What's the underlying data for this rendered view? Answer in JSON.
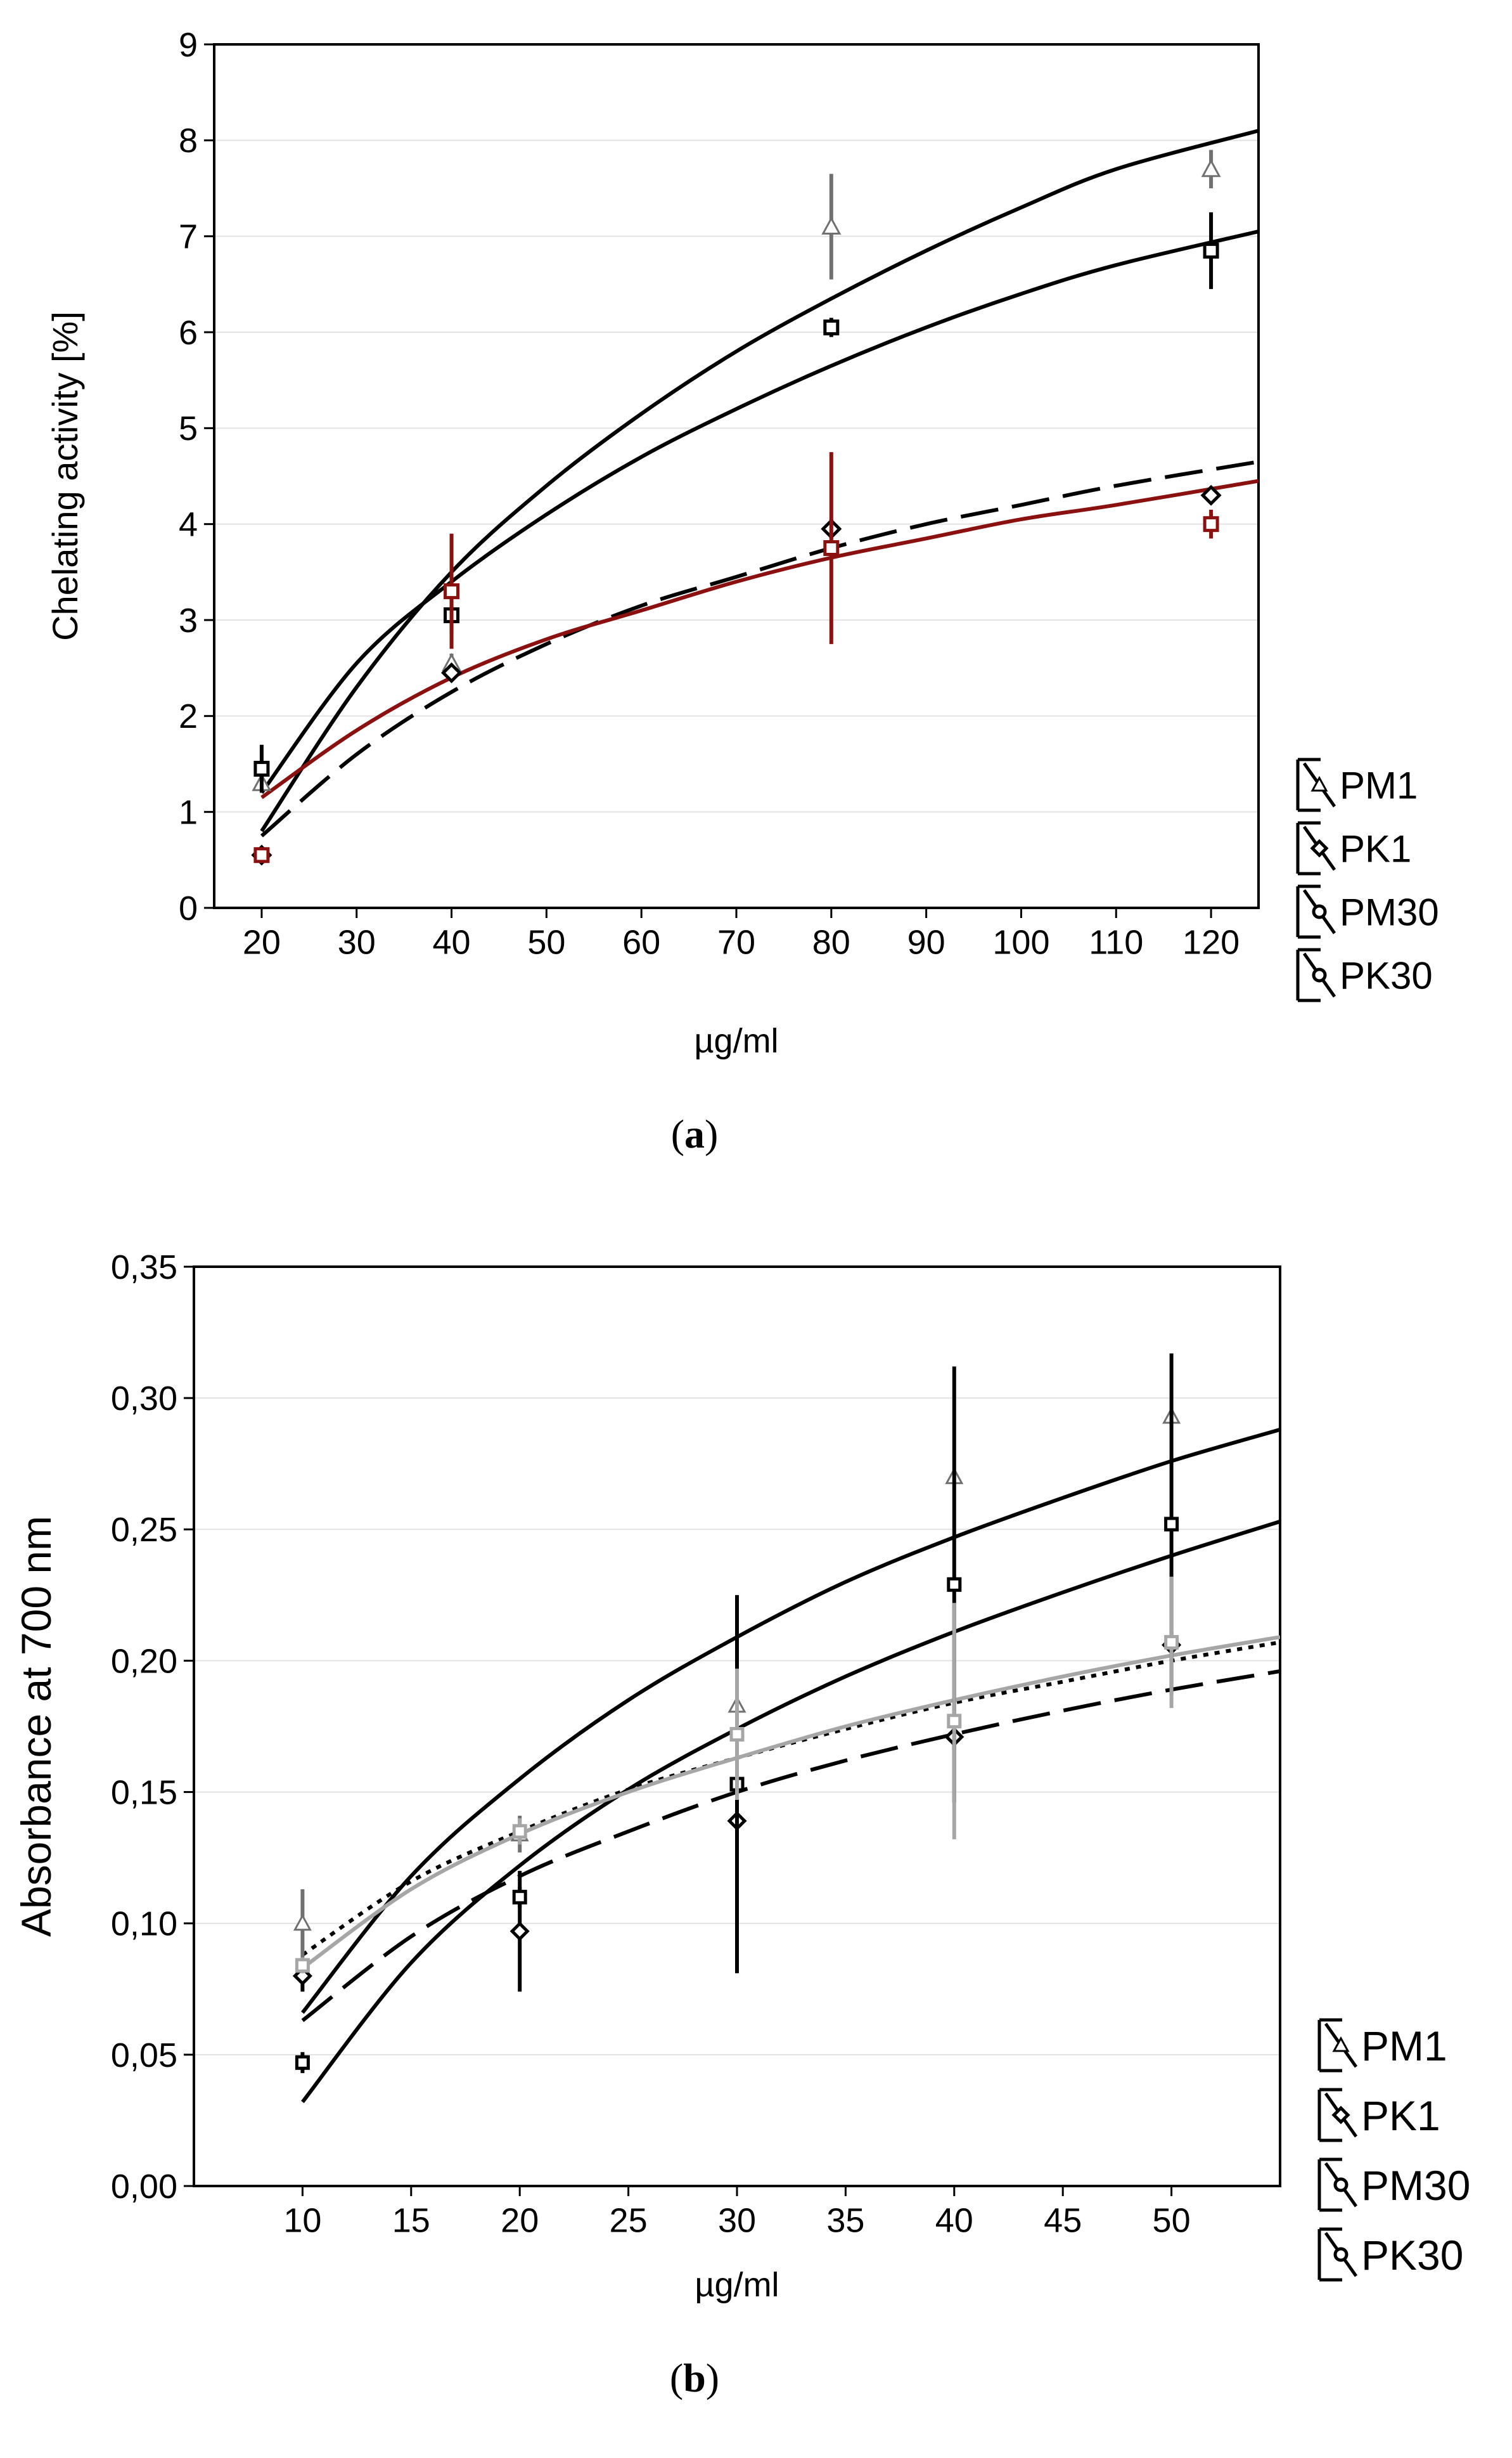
{
  "chart_data": [
    {
      "type": "scatter",
      "panel": "a",
      "caption": "(a)",
      "caption_letter": "a",
      "caption_open": "(",
      "caption_close": ")",
      "xlabel": "µg/ml",
      "ylabel": "Chelating activity [%]",
      "xlim": [
        15,
        125
      ],
      "ylim": [
        0,
        9
      ],
      "xticks": [
        "20",
        "30",
        "40",
        "50",
        "60",
        "70",
        "80",
        "90",
        "100",
        "110",
        "120"
      ],
      "yticks": [
        "0",
        "1",
        "2",
        "3",
        "4",
        "5",
        "6",
        "7",
        "8",
        "9"
      ],
      "legend": [
        "PM1",
        "PK1",
        "PM30",
        "PK30"
      ],
      "series": [
        {
          "name": "PM1",
          "x": [
            20,
            40,
            80,
            120
          ],
          "y": [
            1.3,
            2.55,
            7.1,
            7.7
          ],
          "err": [
            0.1,
            0.1,
            0.55,
            0.2
          ]
        },
        {
          "name": "PK1",
          "x": [
            20,
            40,
            80,
            120
          ],
          "y": [
            0.55,
            2.45,
            3.95,
            4.3
          ],
          "err": [
            0.04,
            0.05,
            0.1,
            0.05
          ]
        },
        {
          "name": "PM30",
          "x": [
            20,
            40,
            80,
            120
          ],
          "y": [
            1.45,
            3.05,
            6.05,
            6.85
          ],
          "err": [
            0.25,
            0.2,
            0.1,
            0.4
          ]
        },
        {
          "name": "PK30",
          "x": [
            20,
            40,
            80,
            120
          ],
          "y": [
            0.55,
            3.3,
            3.75,
            4.0
          ],
          "err": [
            0.05,
            0.6,
            1.0,
            0.15
          ]
        }
      ],
      "fits": [
        {
          "series": "PM1",
          "style": "solid",
          "color": "#000000",
          "x": [
            20,
            30,
            40,
            50,
            60,
            70,
            80,
            90,
            100,
            110,
            125
          ],
          "y": [
            0.8,
            2.3,
            3.5,
            4.4,
            5.15,
            5.8,
            6.35,
            6.85,
            7.3,
            7.7,
            8.1
          ]
        },
        {
          "series": "PM30",
          "style": "solid",
          "color": "#000000",
          "x": [
            20,
            30,
            40,
            50,
            60,
            70,
            80,
            90,
            100,
            110,
            125
          ],
          "y": [
            1.2,
            2.55,
            3.4,
            4.1,
            4.7,
            5.2,
            5.65,
            6.05,
            6.4,
            6.7,
            7.05
          ]
        },
        {
          "series": "PK1",
          "style": "dashed",
          "color": "#000000",
          "x": [
            20,
            30,
            40,
            50,
            60,
            70,
            80,
            90,
            100,
            110,
            125
          ],
          "y": [
            0.75,
            1.6,
            2.25,
            2.75,
            3.15,
            3.45,
            3.75,
            4.0,
            4.2,
            4.4,
            4.65
          ]
        },
        {
          "series": "PK30",
          "style": "solid",
          "color": "#8b1010",
          "x": [
            20,
            30,
            40,
            50,
            60,
            70,
            80,
            90,
            100,
            110,
            125
          ],
          "y": [
            1.15,
            1.85,
            2.4,
            2.8,
            3.1,
            3.4,
            3.65,
            3.85,
            4.05,
            4.2,
            4.45
          ]
        }
      ]
    },
    {
      "type": "scatter",
      "panel": "b",
      "caption": "(b)",
      "caption_letter": "b",
      "caption_open": "(",
      "caption_close": ")",
      "xlabel": "µg/ml",
      "ylabel": "Absorbance at 700 nm",
      "xlim": [
        5,
        55
      ],
      "ylim": [
        0,
        0.35
      ],
      "xticks": [
        "10",
        "15",
        "20",
        "25",
        "30",
        "35",
        "40",
        "45",
        "50"
      ],
      "yticks": [
        "0,00",
        "0,05",
        "0,10",
        "0,15",
        "0,20",
        "0,25",
        "0,30",
        "0,35"
      ],
      "legend": [
        "PM1",
        "PK1",
        "PM30",
        "PK30"
      ],
      "series": [
        {
          "name": "PM1",
          "x": [
            10,
            20,
            30,
            40,
            50
          ],
          "y": [
            0.1,
            0.134,
            0.183,
            0.27,
            0.293
          ],
          "err": [
            0.013,
            0.007,
            0.0,
            0.0,
            0.0
          ]
        },
        {
          "name": "PK1",
          "x": [
            10,
            20,
            30,
            40,
            50
          ],
          "y": [
            0.08,
            0.097,
            0.139,
            0.171,
            0.206
          ],
          "err": [
            0.006,
            0.023,
            0.017,
            0.005,
            0.005
          ]
        },
        {
          "name": "PM30",
          "x": [
            10,
            20,
            30,
            40,
            50
          ],
          "y": [
            0.047,
            0.11,
            0.153,
            0.229,
            0.252
          ],
          "err": [
            0.004,
            0.004,
            0.072,
            0.083,
            0.065
          ]
        },
        {
          "name": "PK30",
          "x": [
            10,
            20,
            30,
            40,
            50
          ],
          "y": [
            0.084,
            0.135,
            0.172,
            0.177,
            0.207
          ],
          "err": [
            0.003,
            0.005,
            0.025,
            0.045,
            0.025
          ]
        }
      ],
      "fits": [
        {
          "series": "PM1",
          "style": "solid",
          "color": "#000000",
          "x": [
            10,
            15,
            20,
            25,
            30,
            35,
            40,
            45,
            50,
            55
          ],
          "y": [
            0.066,
            0.118,
            0.155,
            0.185,
            0.209,
            0.23,
            0.247,
            0.262,
            0.276,
            0.288
          ]
        },
        {
          "series": "PM30",
          "style": "solid",
          "color": "#000000",
          "x": [
            10,
            15,
            20,
            25,
            30,
            35,
            40,
            45,
            50,
            55
          ],
          "y": [
            0.032,
            0.085,
            0.122,
            0.151,
            0.174,
            0.194,
            0.211,
            0.226,
            0.24,
            0.253
          ]
        },
        {
          "series": "PK1",
          "style": "dashed",
          "color": "#000000",
          "x": [
            10,
            15,
            20,
            25,
            30,
            35,
            40,
            45,
            50,
            55
          ],
          "y": [
            0.063,
            0.095,
            0.118,
            0.135,
            0.15,
            0.162,
            0.172,
            0.181,
            0.189,
            0.196
          ]
        },
        {
          "series": "PK30",
          "style": "dotted",
          "color": "#000000",
          "x": [
            10,
            15,
            20,
            25,
            30,
            35,
            40,
            45,
            50,
            55
          ],
          "y": [
            0.088,
            0.116,
            0.135,
            0.151,
            0.163,
            0.174,
            0.184,
            0.192,
            0.2,
            0.207
          ]
        },
        {
          "series": "PK30",
          "style": "solid",
          "color": "#a6a6a6",
          "x": [
            10,
            15,
            20,
            25,
            30,
            35,
            40,
            45,
            50,
            55
          ],
          "y": [
            0.083,
            0.113,
            0.134,
            0.15,
            0.163,
            0.175,
            0.185,
            0.194,
            0.202,
            0.209
          ]
        }
      ]
    }
  ]
}
